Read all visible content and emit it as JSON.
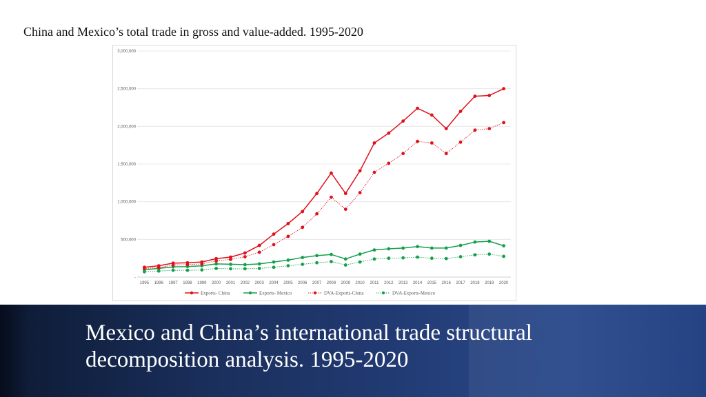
{
  "slide": {
    "top_title": "China and Mexico’s total trade in gross and value-added. 1995-2020",
    "banner_title": "Mexico and China’s international trade structural decomposition analysis. 1995-2020"
  },
  "chart_data": {
    "type": "line",
    "title": "",
    "xlabel": "",
    "ylabel": "",
    "ylim": [
      0,
      3000000
    ],
    "yticks": [
      0,
      500000,
      1000000,
      1500000,
      2000000,
      2500000,
      3000000
    ],
    "ytick_labels": [
      "-",
      "500,000",
      "1,000,000",
      "1,500,000",
      "2,000,000",
      "2,500,000",
      "3,000,000"
    ],
    "grid": true,
    "legend_position": "bottom",
    "x": [
      "1995",
      "1996",
      "1997",
      "1998",
      "1999",
      "2000",
      "2001",
      "2002",
      "2003",
      "2004",
      "2005",
      "2006",
      "2007",
      "2008",
      "2009",
      "2010",
      "2011",
      "2012",
      "2013",
      "2014",
      "2015",
      "2016",
      "2017",
      "2018",
      "2019",
      "2020"
    ],
    "series": [
      {
        "name": "Exports- China",
        "color": "#e0101a",
        "style": "solid",
        "values": [
          130000,
          150000,
          185000,
          190000,
          200000,
          245000,
          265000,
          320000,
          420000,
          570000,
          710000,
          870000,
          1110000,
          1380000,
          1110000,
          1410000,
          1780000,
          1910000,
          2070000,
          2240000,
          2150000,
          1970000,
          2200000,
          2400000,
          2410000,
          2500000
        ]
      },
      {
        "name": "Exports- Mexico",
        "color": "#14a04b",
        "style": "solid",
        "values": [
          95000,
          115000,
          135000,
          140000,
          150000,
          175000,
          170000,
          165000,
          175000,
          200000,
          225000,
          260000,
          285000,
          300000,
          240000,
          305000,
          360000,
          375000,
          385000,
          405000,
          385000,
          385000,
          420000,
          465000,
          475000,
          415000
        ]
      },
      {
        "name": "DVA-Exports-China",
        "color": "#e0101a",
        "style": "dotted",
        "values": [
          115000,
          125000,
          160000,
          165000,
          175000,
          215000,
          235000,
          270000,
          330000,
          430000,
          540000,
          660000,
          840000,
          1060000,
          900000,
          1120000,
          1390000,
          1510000,
          1640000,
          1800000,
          1780000,
          1640000,
          1790000,
          1950000,
          1970000,
          2050000
        ]
      },
      {
        "name": "DVA-Exports-Mexico",
        "color": "#14a04b",
        "style": "dotted",
        "values": [
          70000,
          80000,
          90000,
          90000,
          95000,
          115000,
          110000,
          110000,
          115000,
          130000,
          150000,
          170000,
          190000,
          205000,
          160000,
          200000,
          240000,
          250000,
          255000,
          265000,
          250000,
          245000,
          270000,
          295000,
          305000,
          275000
        ]
      }
    ]
  }
}
